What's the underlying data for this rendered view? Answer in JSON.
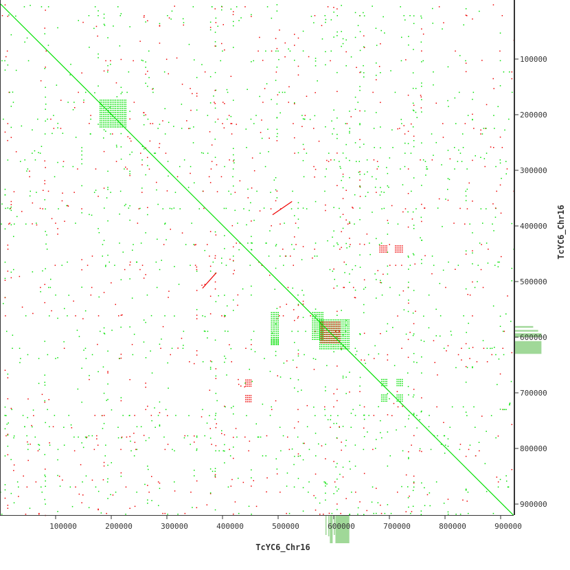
{
  "chart_data": {
    "type": "scatter",
    "title": "",
    "xlabel": "TcYC6_Chr16",
    "ylabel": "TcYC6_Chr16",
    "xlim": [
      0,
      923000
    ],
    "ylim": [
      0,
      920000
    ],
    "y_inverted": true,
    "y_axis_side": "right",
    "grid": false,
    "xticks": [
      100000,
      200000,
      300000,
      400000,
      500000,
      600000,
      700000,
      800000,
      900000
    ],
    "yticks": [
      100000,
      200000,
      300000,
      400000,
      500000,
      600000,
      700000,
      800000,
      900000
    ],
    "colors": {
      "forward": "#00e000",
      "reverse": "#ee0000",
      "histogram": "#a0d898",
      "axis": "#333333"
    },
    "diagonal": {
      "from": [
        0,
        0
      ],
      "to": [
        923000,
        920000
      ],
      "color": "forward"
    },
    "forward_blocks": [
      {
        "x": [
          179000,
          228000
        ],
        "y": [
          173000,
          222000
        ]
      },
      {
        "x": [
          574000,
          627000
        ],
        "y": [
          568000,
          621000
        ]
      },
      {
        "x": [
          561000,
          580000
        ],
        "y": [
          555000,
          605000
        ]
      },
      {
        "x": [
          487000,
          500000
        ],
        "y": [
          555000,
          605000
        ]
      },
      {
        "x": [
          487000,
          500000
        ],
        "y": [
          600000,
          612000
        ]
      },
      {
        "x": [
          685000,
          695000
        ],
        "y": [
          675000,
          688000
        ]
      },
      {
        "x": [
          713000,
          723000
        ],
        "y": [
          675000,
          688000
        ]
      },
      {
        "x": [
          685000,
          695000
        ],
        "y": [
          703000,
          716000
        ]
      },
      {
        "x": [
          713000,
          723000
        ],
        "y": [
          703000,
          716000
        ]
      },
      {
        "x": [
          487000,
          500000
        ],
        "y": [
          605000,
          615000
        ]
      }
    ],
    "reverse_segments": [
      {
        "from": [
          364000,
          512000
        ],
        "to": [
          389000,
          484000
        ]
      },
      {
        "from": [
          490000,
          380000
        ],
        "to": [
          525000,
          356000
        ]
      }
    ],
    "reverse_blocks": [
      {
        "x": [
          682000,
          695000
        ],
        "y": [
          435000,
          447000
        ]
      },
      {
        "x": [
          710000,
          723000
        ],
        "y": [
          435000,
          447000
        ]
      },
      {
        "x": [
          441000,
          453000
        ],
        "y": [
          676000,
          688000
        ]
      },
      {
        "x": [
          441000,
          453000
        ],
        "y": [
          704000,
          716000
        ]
      },
      {
        "x": [
          576000,
          610000
        ],
        "y": [
          572000,
          610000
        ]
      }
    ],
    "x_histogram": [
      {
        "x": [
          585000,
          587000
        ],
        "v": 0.7
      },
      {
        "x": [
          590000,
          592000
        ],
        "v": 0.75
      },
      {
        "x": [
          593000,
          598000
        ],
        "v": 1.0
      },
      {
        "x": [
          600000,
          602000
        ],
        "v": 0.7
      },
      {
        "x": [
          603000,
          628000
        ],
        "v": 1.0
      }
    ],
    "y_histogram": [
      {
        "y": [
          580000,
          583000
        ],
        "v": 0.55
      },
      {
        "y": [
          587000,
          590000
        ],
        "v": 0.7
      },
      {
        "y": [
          593000,
          600000
        ],
        "v": 0.8
      },
      {
        "y": [
          607000,
          630000
        ],
        "v": 0.8
      }
    ]
  }
}
